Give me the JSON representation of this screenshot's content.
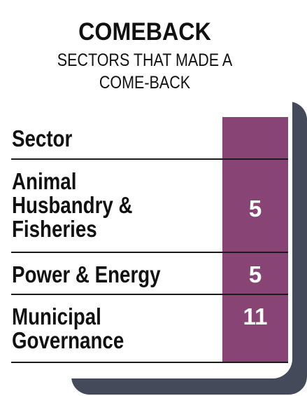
{
  "title": "COMEBACK",
  "subtitle": "SECTORS THAT MADE A COME-BACK",
  "colors": {
    "accent_column": "#884475",
    "shadow": "#444a5a",
    "text": "#111111",
    "value_text": "#ffffff"
  },
  "chart_data": {
    "type": "table",
    "title": "COMEBACK",
    "subtitle": "SECTORS THAT MADE A COME-BACK",
    "columns": [
      "Sector",
      ""
    ],
    "rows": [
      {
        "sector": "Animal Husbandry & Fisheries",
        "value": 5
      },
      {
        "sector": "Power & Energy",
        "value": 5
      },
      {
        "sector": "Municipal Governance",
        "value": 11
      }
    ]
  },
  "table": {
    "header": "Sector",
    "rows": [
      {
        "label": "Animal\nHusbandry &\nFisheries",
        "value": "5"
      },
      {
        "label": "Power & Energy",
        "value": "5"
      },
      {
        "label": "Municipal\nGovernance",
        "value": "11"
      }
    ]
  }
}
